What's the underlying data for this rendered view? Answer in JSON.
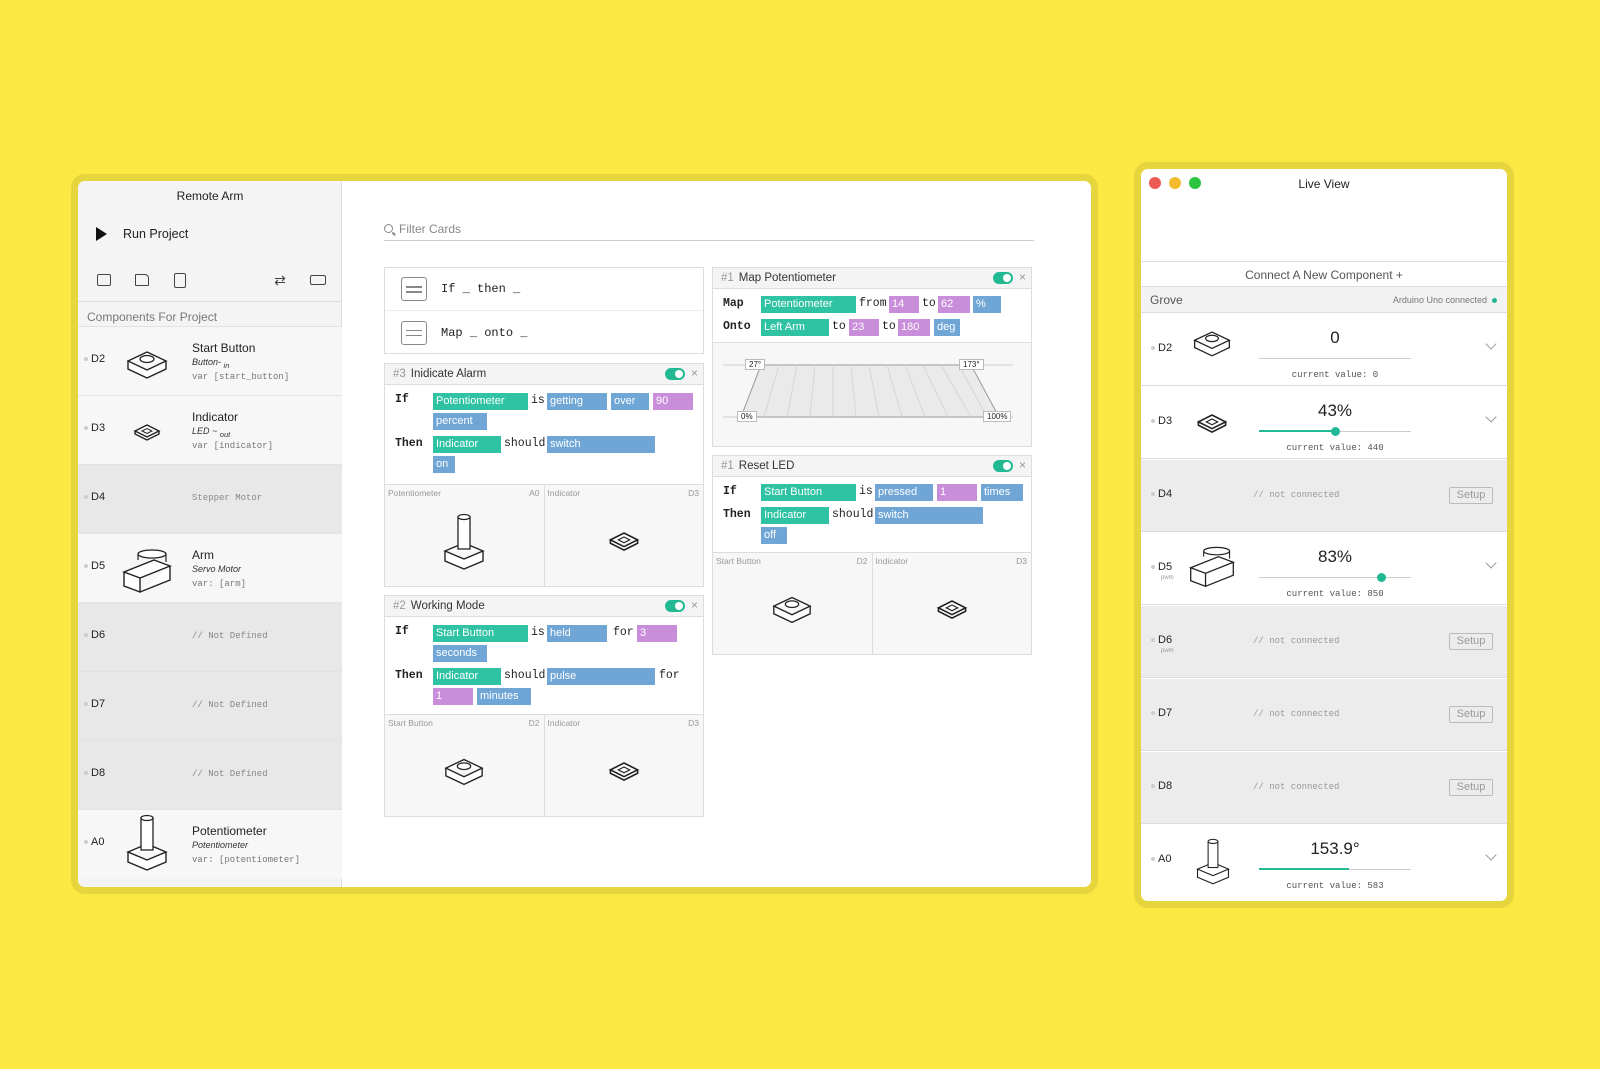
{
  "colors": {
    "background": "#fbe843",
    "teal": "#2fc2a3",
    "blue": "#6fa6d6",
    "purple": "#c88ed9",
    "close": "#ee5b55",
    "minimize": "#f3bb2e",
    "maximize": "#2dc441"
  },
  "main_window": {
    "title": "Remote Arm",
    "run_label": "Run Project",
    "components_header": "Components For Project",
    "components": [
      {
        "pin": "D2",
        "name": "Start Button",
        "type": "Button",
        "dir": "in",
        "var": "var [start_button]",
        "icon": "button-icon"
      },
      {
        "pin": "D3",
        "name": "Indicator",
        "type": "LED",
        "dir": "out",
        "var": "var [indicator]",
        "icon": "led-icon"
      },
      {
        "pin": "D4",
        "placeholder": "Stepper Motor"
      },
      {
        "pin": "D5",
        "name": "Arm",
        "type": "Servo Motor",
        "var": "var: [arm]",
        "icon": "servo-icon"
      },
      {
        "pin": "D6",
        "placeholder": "// Not Defined"
      },
      {
        "pin": "D7",
        "placeholder": "// Not Defined"
      },
      {
        "pin": "D8",
        "placeholder": "// Not Defined"
      },
      {
        "pin": "A0",
        "name": "Potentiometer",
        "type": "Potentiometer",
        "var": "var: [potentiometer]",
        "icon": "potentiometer-icon"
      }
    ],
    "filter_placeholder": "Filter Cards",
    "templates": [
      {
        "a": "If",
        "b": "_",
        "c": "then",
        "d": "_"
      },
      {
        "a": "Map",
        "b": "_",
        "c": "onto",
        "d": "_"
      }
    ],
    "cards": {
      "alarm": {
        "num": "#3",
        "title": "Inidicate Alarm",
        "if": "If",
        "then": "Then",
        "t1": "Potentiometer",
        "w1": "is",
        "t2": "getting",
        "t3": "over",
        "t4": "90",
        "t5": "percent",
        "t6": "Indicator",
        "w2": "should",
        "t7": "switch",
        "t8": "on",
        "thumb_left": "Potentiometer",
        "thumb_left_pin": "A0",
        "thumb_right": "Indicator",
        "thumb_right_pin": "D3"
      },
      "working": {
        "num": "#2",
        "title": "Working Mode",
        "if": "If",
        "then": "Then",
        "t1": "Start Button",
        "w1": "is",
        "t2": "held",
        "w2": "for",
        "t3": "3",
        "t4": "seconds",
        "t5": "Indicator",
        "w3": "should",
        "t6": "pulse",
        "w4": "for",
        "t7": "1",
        "t8": "minutes",
        "thumb_left": "Start Button",
        "thumb_left_pin": "D2",
        "thumb_right": "Indicator",
        "thumb_right_pin": "D3"
      },
      "map": {
        "num": "#1",
        "title": "Map Potentiometer",
        "map": "Map",
        "onto": "Onto",
        "t1": "Potentiometer",
        "w1": "from",
        "t2": "14",
        "w2": "to",
        "t3": "62",
        "t4": "%",
        "t5": "Left Arm",
        "w3": "to",
        "t6": "23",
        "w4": "to",
        "t7": "180",
        "t8": "deg",
        "graph_top_left": "27°",
        "graph_top_right": "173°",
        "graph_bottom_left": "0%",
        "graph_bottom_right": "100%"
      },
      "reset": {
        "num": "#1",
        "title": "Reset LED",
        "if": "If",
        "then": "Then",
        "t1": "Start Button",
        "w1": "is",
        "t2": "pressed",
        "t3": "1",
        "t4": "times",
        "t5": "Indicator",
        "w2": "should",
        "t6": "switch",
        "t7": "off",
        "thumb_left": "Start Button",
        "thumb_left_pin": "D2",
        "thumb_right": "Indicator",
        "thumb_right_pin": "D3"
      }
    }
  },
  "live_window": {
    "title": "Live View",
    "connect_label": "Connect A New Component +",
    "grove_label": "Grove",
    "status": "Arduino Uno connected",
    "rows": [
      {
        "pin": "D2",
        "value": "0",
        "current": "current value: 0",
        "level": 0
      },
      {
        "pin": "D3",
        "value": "43%",
        "current": "current value: 440",
        "level": 0.5
      },
      {
        "pin": "D4",
        "nc": "// not connected",
        "setup": "Setup"
      },
      {
        "pin": "D5",
        "sub": "pwm",
        "value": "83%",
        "current": "current value: 850",
        "level": 0.8
      },
      {
        "pin": "D6",
        "sub": "pwm",
        "nc": "// not connected",
        "setup": "Setup"
      },
      {
        "pin": "D7",
        "nc": "// not connected",
        "setup": "Setup"
      },
      {
        "pin": "D8",
        "nc": "// not connected",
        "setup": "Setup"
      },
      {
        "pin": "A0",
        "value": "153.9°",
        "current": "current value: 583",
        "level": 0.59
      }
    ]
  }
}
